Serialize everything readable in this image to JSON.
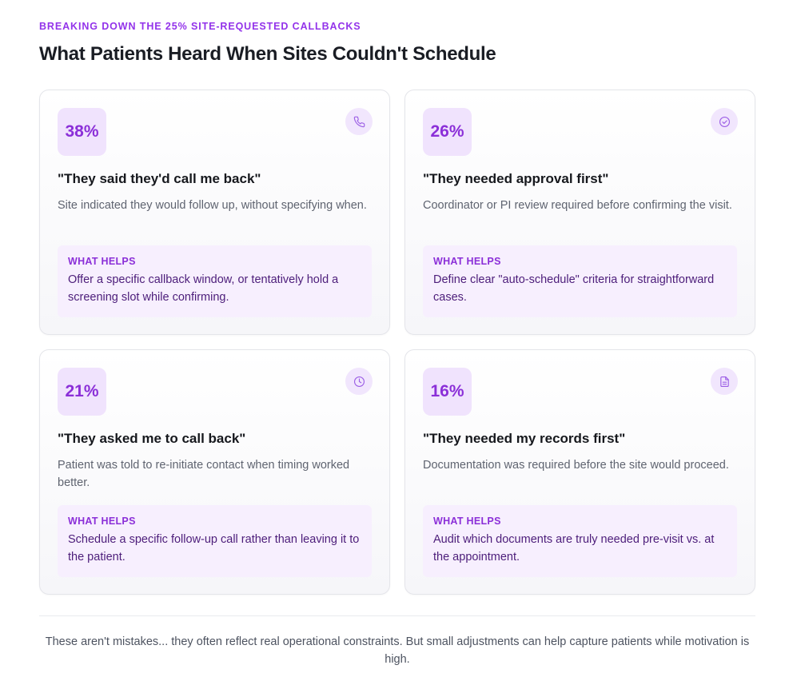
{
  "header": {
    "eyebrow": "BREAKING DOWN THE 25% SITE-REQUESTED CALLBACKS",
    "title": "What Patients Heard When Sites Couldn't Schedule"
  },
  "cards": [
    {
      "percent": "38%",
      "icon": "phone-icon",
      "quote": "\"They said they'd call me back\"",
      "description": "Site indicated they would follow up, without specifying when.",
      "helps_label": "WHAT HELPS",
      "helps_text": "Offer a specific callback window, or tentatively hold a screening slot while confirming."
    },
    {
      "percent": "26%",
      "icon": "check-circle-icon",
      "quote": "\"They needed approval first\"",
      "description": "Coordinator or PI review required before confirming the visit.",
      "helps_label": "WHAT HELPS",
      "helps_text": "Define clear \"auto-schedule\" criteria for straightforward cases."
    },
    {
      "percent": "21%",
      "icon": "clock-icon",
      "quote": "\"They asked me to call back\"",
      "description": "Patient was told to re-initiate contact when timing worked better.",
      "helps_label": "WHAT HELPS",
      "helps_text": "Schedule a specific follow-up call rather than leaving it to the patient."
    },
    {
      "percent": "16%",
      "icon": "document-icon",
      "quote": "\"They needed my records first\"",
      "description": "Documentation was required before the site would proceed.",
      "helps_label": "WHAT HELPS",
      "helps_text": "Audit which documents are truly needed pre-visit vs. at the appointment."
    }
  ],
  "footer": {
    "text": "These aren't mistakes... they often reflect real operational constraints. But small adjustments can help capture patients while motivation is high."
  },
  "colors": {
    "accent": "#9333ea",
    "badge_bg": "#f0e3fd",
    "helps_bg": "#f7effe",
    "helps_text": "#4c1d7a"
  }
}
